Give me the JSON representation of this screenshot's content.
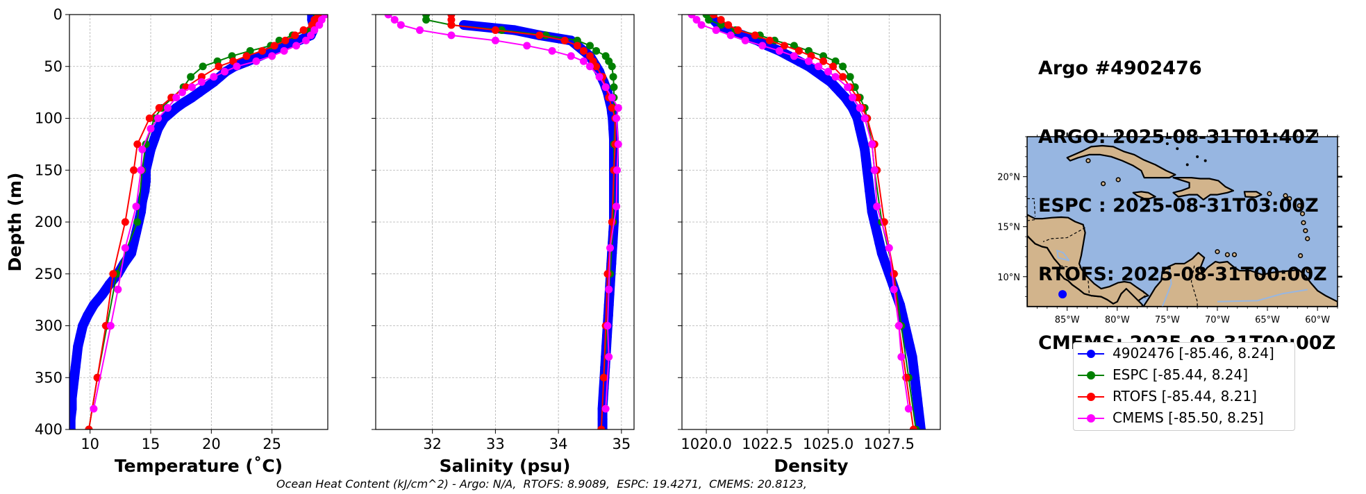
{
  "colors": {
    "argo": "#0000ff",
    "espc": "#008000",
    "rtofs": "#ff0000",
    "cmems": "#ff00ff",
    "sea": "#97b6e1",
    "land": "#d2b48c",
    "grid": "#b0b0b0"
  },
  "header": {
    "line1": "Argo #4902476",
    "line2": "ARGO: 2025-08-31T01:40Z",
    "line3": "ESPC : 2025-08-31T03:00Z",
    "line4": "RTOFS: 2025-08-31T00:00Z",
    "line5": "CMEMS: 2025-08-31T00:00Z"
  },
  "legend": [
    {
      "label": "4902476 [-85.46, 8.24]",
      "color": "#0000ff"
    },
    {
      "label": "ESPC [-85.44, 8.24]",
      "color": "#008000"
    },
    {
      "label": "RTOFS [-85.44, 8.21]",
      "color": "#ff0000"
    },
    {
      "label": "CMEMS [-85.50, 8.25]",
      "color": "#ff00ff"
    }
  ],
  "footer": "Ocean Heat Content (kJ/cm^2) - Argo: N/A,  RTOFS: 8.9089,  ESPC: 19.4271,  CMEMS: 20.8123,",
  "map": {
    "xlim": [
      -89,
      -58
    ],
    "ylim": [
      7,
      24
    ],
    "lon_ticks": [
      -85,
      -80,
      -75,
      -70,
      -65,
      -60
    ],
    "lon_labels": [
      "85°W",
      "80°W",
      "75°W",
      "70°W",
      "65°W",
      "60°W"
    ],
    "lat_ticks": [
      10,
      15,
      20
    ],
    "lat_labels": [
      "10°N",
      "15°N",
      "20°N"
    ],
    "marker": {
      "lon": -85.46,
      "lat": 8.24
    }
  },
  "chart_data": [
    {
      "type": "line",
      "xlabel": "Temperature (˚C)",
      "ylabel": "Depth (m)",
      "xlim": [
        8.3,
        29.6
      ],
      "ylim": [
        400,
        0
      ],
      "xticks": [
        10,
        15,
        20,
        25
      ],
      "xtick_labels": [
        "10",
        "15",
        "20",
        "25"
      ],
      "yticks": [
        0,
        50,
        100,
        150,
        200,
        250,
        300,
        350,
        400
      ],
      "ytick_labels": [
        "0",
        "50",
        "100",
        "150",
        "200",
        "250",
        "300",
        "350",
        "400"
      ],
      "series": [
        {
          "name": "4902476",
          "color": "#0000ff",
          "style": "argo",
          "depth": [
            0,
            5,
            10,
            15,
            20,
            25,
            30,
            35,
            40,
            45,
            50,
            55,
            60,
            65,
            70,
            75,
            80,
            85,
            90,
            95,
            100,
            110,
            120,
            130,
            140,
            150,
            160,
            170,
            180,
            190,
            200,
            210,
            220,
            230,
            240,
            250,
            260,
            270,
            280,
            290,
            300,
            310,
            320,
            330,
            340,
            350,
            360,
            370,
            380,
            390,
            400
          ],
          "values": [
            28.3,
            28.3,
            28.4,
            28.4,
            28.2,
            27.2,
            26.0,
            25.0,
            24.0,
            23.0,
            21.9,
            21.2,
            20.7,
            20.2,
            19.6,
            19.0,
            18.4,
            17.7,
            17.1,
            16.6,
            16.1,
            15.6,
            15.3,
            15.0,
            14.8,
            14.6,
            14.6,
            14.5,
            14.3,
            14.2,
            14.0,
            13.8,
            13.6,
            13.4,
            12.8,
            12.3,
            11.6,
            11.0,
            10.3,
            9.8,
            9.4,
            9.2,
            9.0,
            8.9,
            8.8,
            8.7,
            8.6,
            8.5,
            8.5,
            8.4,
            8.4
          ]
        },
        {
          "name": "ESPC",
          "color": "#008000",
          "style": "model",
          "depth": [
            0,
            5,
            10,
            15,
            20,
            25,
            30,
            35,
            40,
            45,
            50,
            60,
            70,
            80,
            90,
            100,
            125,
            150,
            200,
            250,
            300,
            350,
            400
          ],
          "values": [
            28.7,
            28.6,
            28.5,
            28.1,
            26.7,
            25.6,
            24.9,
            23.2,
            21.7,
            20.5,
            19.3,
            18.3,
            17.7,
            16.8,
            15.9,
            15.3,
            14.6,
            14.3,
            13.9,
            12.2,
            11.4,
            10.6,
            9.9
          ]
        },
        {
          "name": "RTOFS",
          "color": "#ff0000",
          "style": "model",
          "depth": [
            0,
            5,
            10,
            15,
            20,
            25,
            30,
            35,
            40,
            45,
            50,
            60,
            70,
            80,
            90,
            100,
            125,
            150,
            200,
            250,
            300,
            350,
            400
          ],
          "values": [
            28.8,
            28.5,
            28.3,
            27.6,
            26.9,
            26.1,
            25.2,
            24.2,
            22.9,
            21.8,
            20.6,
            19.2,
            17.9,
            16.7,
            15.7,
            14.9,
            13.9,
            13.6,
            12.9,
            11.9,
            11.3,
            10.6,
            9.9
          ]
        },
        {
          "name": "CMEMS",
          "color": "#ff00ff",
          "style": "model",
          "depth": [
            0,
            5,
            10,
            15,
            20,
            25,
            30,
            35,
            40,
            45,
            50,
            55,
            60,
            65,
            70,
            75,
            80,
            90,
            100,
            110,
            130,
            150,
            185,
            225,
            265,
            300,
            380
          ],
          "values": [
            29.4,
            29.1,
            28.9,
            28.5,
            28.2,
            27.8,
            27.0,
            26.0,
            25.0,
            23.7,
            22.1,
            21.1,
            20.2,
            19.2,
            18.4,
            17.6,
            17.1,
            16.4,
            15.6,
            15.0,
            14.3,
            14.2,
            13.8,
            12.9,
            12.3,
            11.7,
            10.3
          ]
        }
      ]
    },
    {
      "type": "line",
      "xlabel": "Salinity (psu)",
      "ylabel": "",
      "xlim": [
        31.1,
        35.2
      ],
      "ylim": [
        400,
        0
      ],
      "xticks": [
        32,
        33,
        34,
        35
      ],
      "xtick_labels": [
        "32",
        "33",
        "34",
        "35"
      ],
      "yticks": [
        0,
        50,
        100,
        150,
        200,
        250,
        300,
        350,
        400
      ],
      "ytick_labels": [],
      "series": [
        {
          "name": "4902476",
          "color": "#0000ff",
          "style": "argo",
          "depth": [
            10,
            15,
            20,
            25,
            30,
            35,
            40,
            45,
            50,
            55,
            60,
            65,
            70,
            75,
            80,
            85,
            90,
            95,
            100,
            110,
            120,
            130,
            140,
            150,
            160,
            170,
            180,
            190,
            200,
            210,
            220,
            230,
            240,
            250,
            260,
            270,
            280,
            290,
            300,
            310,
            320,
            330,
            340,
            350,
            360,
            370,
            380,
            390,
            400
          ],
          "values": [
            32.5,
            33.3,
            33.7,
            34.2,
            34.3,
            34.4,
            34.5,
            34.55,
            34.6,
            34.65,
            34.68,
            34.72,
            34.75,
            34.78,
            34.8,
            34.82,
            34.84,
            34.85,
            34.86,
            34.87,
            34.88,
            34.88,
            34.88,
            34.88,
            34.88,
            34.88,
            34.88,
            34.88,
            34.88,
            34.87,
            34.86,
            34.85,
            34.84,
            34.83,
            34.82,
            34.81,
            34.8,
            34.79,
            34.78,
            34.77,
            34.76,
            34.75,
            34.74,
            34.73,
            34.72,
            34.71,
            34.7,
            34.7,
            34.7
          ]
        },
        {
          "name": "ESPC",
          "color": "#008000",
          "style": "model",
          "depth": [
            0,
            5,
            10,
            15,
            20,
            25,
            30,
            35,
            40,
            45,
            50,
            60,
            70,
            80,
            90,
            100,
            125,
            150,
            200,
            250,
            300,
            350,
            400
          ],
          "values": [
            31.9,
            31.9,
            32.3,
            33.1,
            33.8,
            34.3,
            34.5,
            34.6,
            34.75,
            34.8,
            34.85,
            34.87,
            34.88,
            34.88,
            34.88,
            34.9,
            34.88,
            34.88,
            34.87,
            34.82,
            34.77,
            34.72,
            34.68
          ]
        },
        {
          "name": "RTOFS",
          "color": "#ff0000",
          "style": "model",
          "depth": [
            0,
            5,
            10,
            15,
            20,
            25,
            30,
            35,
            40,
            45,
            50,
            60,
            70,
            80,
            90,
            100,
            125,
            150,
            200,
            250,
            300,
            350,
            400
          ],
          "values": [
            32.3,
            32.3,
            32.3,
            33.0,
            33.7,
            34.1,
            34.3,
            34.4,
            34.5,
            34.55,
            34.6,
            34.7,
            34.75,
            34.8,
            34.85,
            34.9,
            34.9,
            34.88,
            34.85,
            34.78,
            34.75,
            34.72,
            34.68
          ]
        },
        {
          "name": "CMEMS",
          "color": "#ff00ff",
          "style": "model",
          "depth": [
            0,
            5,
            10,
            15,
            20,
            25,
            30,
            35,
            40,
            45,
            50,
            60,
            70,
            80,
            90,
            100,
            125,
            150,
            185,
            225,
            265,
            300,
            330,
            380
          ],
          "values": [
            31.3,
            31.4,
            31.5,
            31.8,
            32.3,
            33.0,
            33.5,
            33.9,
            34.2,
            34.4,
            34.5,
            34.65,
            34.75,
            34.85,
            34.95,
            34.92,
            34.95,
            34.93,
            34.92,
            34.82,
            34.8,
            34.78,
            34.8,
            34.75
          ]
        }
      ]
    },
    {
      "type": "line",
      "xlabel": "Density",
      "ylabel": "",
      "xlim": [
        1019.0,
        1029.6
      ],
      "ylim": [
        400,
        0
      ],
      "xticks": [
        1020.0,
        1022.5,
        1025.0,
        1027.5
      ],
      "xtick_labels": [
        "1020.0",
        "1022.5",
        "1025.0",
        "1027.5"
      ],
      "yticks": [
        0,
        50,
        100,
        150,
        200,
        250,
        300,
        350,
        400
      ],
      "ytick_labels": [],
      "series": [
        {
          "name": "4902476",
          "color": "#0000ff",
          "style": "argo",
          "depth": [
            5,
            10,
            15,
            20,
            25,
            30,
            35,
            40,
            45,
            50,
            55,
            60,
            65,
            70,
            75,
            80,
            85,
            90,
            95,
            100,
            110,
            120,
            130,
            140,
            150,
            160,
            170,
            180,
            190,
            200,
            210,
            220,
            230,
            240,
            250,
            260,
            270,
            280,
            290,
            300,
            310,
            320,
            330,
            340,
            350,
            360,
            370,
            380,
            390,
            400
          ],
          "values": [
            1020.3,
            1020.5,
            1020.9,
            1021.5,
            1022.1,
            1022.5,
            1023.0,
            1023.4,
            1023.8,
            1024.2,
            1024.5,
            1024.8,
            1025.1,
            1025.3,
            1025.5,
            1025.7,
            1025.85,
            1026.0,
            1026.1,
            1026.2,
            1026.3,
            1026.4,
            1026.5,
            1026.55,
            1026.6,
            1026.65,
            1026.7,
            1026.75,
            1026.8,
            1026.9,
            1027.0,
            1027.1,
            1027.2,
            1027.35,
            1027.5,
            1027.65,
            1027.8,
            1027.95,
            1028.05,
            1028.15,
            1028.25,
            1028.35,
            1028.45,
            1028.5,
            1028.55,
            1028.6,
            1028.65,
            1028.7,
            1028.75,
            1028.8
          ]
        },
        {
          "name": "ESPC",
          "color": "#008000",
          "style": "model",
          "depth": [
            0,
            5,
            10,
            15,
            20,
            25,
            30,
            35,
            40,
            45,
            50,
            60,
            70,
            80,
            90,
            100,
            125,
            150,
            200,
            250,
            300,
            350,
            400
          ],
          "values": [
            1020.0,
            1020.1,
            1020.6,
            1021.2,
            1022.2,
            1022.8,
            1023.6,
            1024.2,
            1024.8,
            1025.3,
            1025.6,
            1025.9,
            1026.1,
            1026.3,
            1026.5,
            1026.6,
            1026.8,
            1026.9,
            1027.2,
            1027.7,
            1028.0,
            1028.3,
            1028.6
          ]
        },
        {
          "name": "RTOFS",
          "color": "#ff0000",
          "style": "model",
          "depth": [
            0,
            5,
            10,
            15,
            20,
            25,
            30,
            35,
            40,
            45,
            50,
            60,
            70,
            80,
            90,
            100,
            125,
            150,
            200,
            250,
            300,
            350,
            400
          ],
          "values": [
            1020.3,
            1020.6,
            1020.9,
            1021.3,
            1022.0,
            1022.6,
            1023.2,
            1023.8,
            1024.3,
            1024.8,
            1025.2,
            1025.6,
            1025.9,
            1026.2,
            1026.4,
            1026.6,
            1026.9,
            1027.0,
            1027.3,
            1027.7,
            1027.9,
            1028.2,
            1028.5
          ]
        },
        {
          "name": "CMEMS",
          "color": "#ff00ff",
          "style": "model",
          "depth": [
            0,
            5,
            10,
            15,
            20,
            25,
            30,
            35,
            40,
            45,
            50,
            55,
            60,
            70,
            80,
            90,
            100,
            125,
            150,
            185,
            225,
            265,
            300,
            330,
            380
          ],
          "values": [
            1019.4,
            1019.6,
            1019.8,
            1020.4,
            1021.0,
            1021.6,
            1022.3,
            1023.0,
            1023.6,
            1024.2,
            1024.6,
            1025.0,
            1025.3,
            1025.8,
            1026.0,
            1026.3,
            1026.5,
            1026.8,
            1026.9,
            1027.0,
            1027.5,
            1027.7,
            1027.9,
            1028.0,
            1028.3
          ]
        }
      ]
    }
  ]
}
